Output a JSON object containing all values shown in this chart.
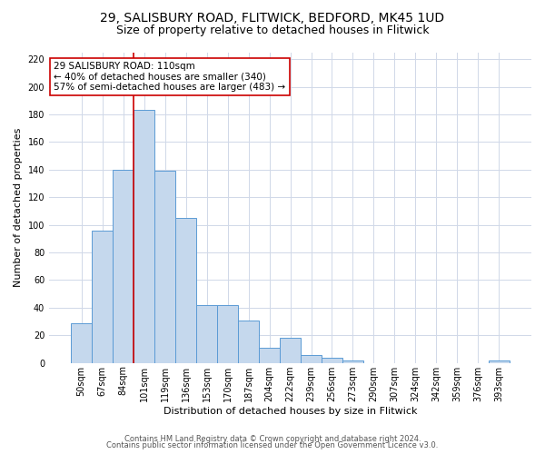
{
  "title1": "29, SALISBURY ROAD, FLITWICK, BEDFORD, MK45 1UD",
  "title2": "Size of property relative to detached houses in Flitwick",
  "xlabel": "Distribution of detached houses by size in Flitwick",
  "ylabel": "Number of detached properties",
  "bin_labels": [
    "50sqm",
    "67sqm",
    "84sqm",
    "101sqm",
    "119sqm",
    "136sqm",
    "153sqm",
    "170sqm",
    "187sqm",
    "204sqm",
    "222sqm",
    "239sqm",
    "256sqm",
    "273sqm",
    "290sqm",
    "307sqm",
    "324sqm",
    "342sqm",
    "359sqm",
    "376sqm",
    "393sqm"
  ],
  "bar_heights": [
    29,
    96,
    140,
    183,
    139,
    105,
    42,
    42,
    31,
    11,
    18,
    6,
    4,
    2,
    0,
    0,
    0,
    0,
    0,
    0,
    2
  ],
  "bar_color": "#c5d8ed",
  "bar_edge_color": "#5b9bd5",
  "vline_color": "#cc0000",
  "annotation_title": "29 SALISBURY ROAD: 110sqm",
  "annotation_line1": "← 40% of detached houses are smaller (340)",
  "annotation_line2": "57% of semi-detached houses are larger (483) →",
  "annotation_box_color": "#ffffff",
  "annotation_box_edge": "#cc0000",
  "ylim": [
    0,
    225
  ],
  "yticks": [
    0,
    20,
    40,
    60,
    80,
    100,
    120,
    140,
    160,
    180,
    200,
    220
  ],
  "footer1": "Contains HM Land Registry data © Crown copyright and database right 2024.",
  "footer2": "Contains public sector information licensed under the Open Government Licence v3.0.",
  "bg_color": "#ffffff",
  "grid_color": "#d0d8e8",
  "title1_fontsize": 10,
  "title2_fontsize": 9,
  "axis_fontsize": 8,
  "tick_fontsize": 7,
  "footer_fontsize": 6
}
